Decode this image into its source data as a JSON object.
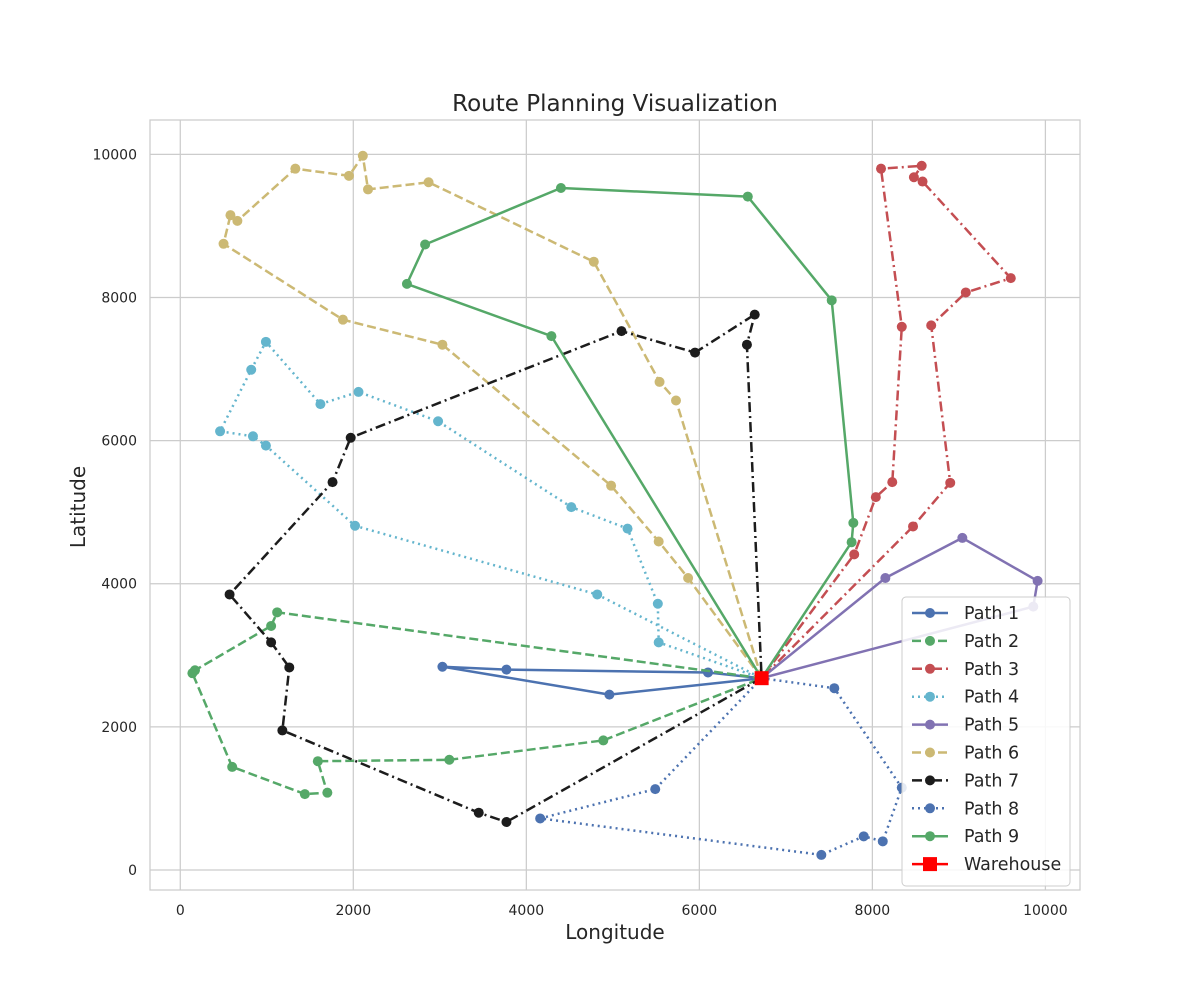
{
  "chart_data": {
    "type": "line",
    "title": "Route Planning Visualization",
    "xlabel": "Longitude",
    "ylabel": "Latitude",
    "xlim": [
      -350,
      10400
    ],
    "ylim": [
      -280,
      10480
    ],
    "xticks": [
      0,
      2000,
      4000,
      6000,
      8000,
      10000
    ],
    "yticks": [
      0,
      2000,
      4000,
      6000,
      8000,
      10000
    ],
    "grid": true,
    "legend_position": "lower-right",
    "warehouse": {
      "name": "Warehouse",
      "x": 6720,
      "y": 2680,
      "color": "#ff0000",
      "marker": "square"
    },
    "series": [
      {
        "name": "Path 1",
        "color": "#4c72b0",
        "dash": "solid",
        "points": [
          [
            6720,
            2680
          ],
          [
            6100,
            2760
          ],
          [
            3770,
            2800
          ],
          [
            3030,
            2840
          ],
          [
            4960,
            2450
          ],
          [
            6720,
            2680
          ]
        ]
      },
      {
        "name": "Path 2",
        "color": "#55a868",
        "dash": "dashed",
        "points": [
          [
            6720,
            2680
          ],
          [
            1120,
            3600
          ],
          [
            1050,
            3410
          ],
          [
            170,
            2790
          ],
          [
            140,
            2750
          ],
          [
            600,
            1440
          ],
          [
            1440,
            1060
          ],
          [
            1700,
            1080
          ],
          [
            1590,
            1520
          ],
          [
            3110,
            1540
          ],
          [
            4890,
            1810
          ],
          [
            6720,
            2680
          ]
        ]
      },
      {
        "name": "Path 3",
        "color": "#c44e52",
        "dash": "dashdot",
        "points": [
          [
            6720,
            2680
          ],
          [
            7790,
            4410
          ],
          [
            8040,
            5210
          ],
          [
            8230,
            5420
          ],
          [
            8340,
            7590
          ],
          [
            8100,
            9800
          ],
          [
            8570,
            9840
          ],
          [
            8480,
            9680
          ],
          [
            8580,
            9620
          ],
          [
            9600,
            8270
          ],
          [
            9080,
            8070
          ],
          [
            8680,
            7610
          ],
          [
            8900,
            5410
          ],
          [
            8470,
            4800
          ],
          [
            6720,
            2680
          ]
        ]
      },
      {
        "name": "Path 4",
        "color": "#64b5cd",
        "dash": "dotted",
        "points": [
          [
            6720,
            2680
          ],
          [
            5530,
            3180
          ],
          [
            5520,
            3720
          ],
          [
            5170,
            4770
          ],
          [
            4520,
            5070
          ],
          [
            2980,
            6270
          ],
          [
            2060,
            6680
          ],
          [
            1620,
            6510
          ],
          [
            990,
            7380
          ],
          [
            820,
            6990
          ],
          [
            460,
            6130
          ],
          [
            840,
            6060
          ],
          [
            990,
            5930
          ],
          [
            2020,
            4810
          ],
          [
            4820,
            3850
          ],
          [
            6720,
            2680
          ]
        ]
      },
      {
        "name": "Path 5",
        "color": "#8172b2",
        "dash": "solid",
        "points": [
          [
            6720,
            2680
          ],
          [
            9860,
            3680
          ],
          [
            9910,
            4040
          ],
          [
            9040,
            4640
          ],
          [
            8150,
            4080
          ],
          [
            6720,
            2680
          ]
        ]
      },
      {
        "name": "Path 6",
        "color": "#ccb974",
        "dash": "dashed",
        "points": [
          [
            6720,
            2680
          ],
          [
            5870,
            4080
          ],
          [
            5530,
            4590
          ],
          [
            4980,
            5370
          ],
          [
            3030,
            7340
          ],
          [
            1880,
            7690
          ],
          [
            500,
            8750
          ],
          [
            580,
            9150
          ],
          [
            660,
            9070
          ],
          [
            1330,
            9800
          ],
          [
            1950,
            9700
          ],
          [
            2110,
            9980
          ],
          [
            2170,
            9510
          ],
          [
            2870,
            9610
          ],
          [
            4780,
            8500
          ],
          [
            5540,
            6820
          ],
          [
            5730,
            6560
          ],
          [
            6720,
            2680
          ]
        ]
      },
      {
        "name": "Path 7",
        "color": "#1c1c1c",
        "dash": "dashdot",
        "points": [
          [
            6720,
            2680
          ],
          [
            3770,
            670
          ],
          [
            3450,
            800
          ],
          [
            1180,
            1950
          ],
          [
            1260,
            2830
          ],
          [
            1050,
            3180
          ],
          [
            570,
            3850
          ],
          [
            1760,
            5420
          ],
          [
            1970,
            6040
          ],
          [
            5100,
            7530
          ],
          [
            5950,
            7230
          ],
          [
            6640,
            7760
          ],
          [
            6550,
            7340
          ],
          [
            6720,
            2680
          ]
        ]
      },
      {
        "name": "Path 8",
        "color": "#4c72b0",
        "dash": "dotted",
        "points": [
          [
            6720,
            2680
          ],
          [
            7560,
            2540
          ],
          [
            8340,
            1150
          ],
          [
            8120,
            400
          ],
          [
            7900,
            470
          ],
          [
            7410,
            210
          ],
          [
            4160,
            720
          ],
          [
            5490,
            1130
          ],
          [
            6720,
            2680
          ]
        ]
      },
      {
        "name": "Path 9",
        "color": "#55a868",
        "dash": "solid",
        "points": [
          [
            6720,
            2680
          ],
          [
            7760,
            4580
          ],
          [
            7780,
            4850
          ],
          [
            7530,
            7960
          ],
          [
            6560,
            9410
          ],
          [
            4400,
            9530
          ],
          [
            2830,
            8740
          ],
          [
            2620,
            8190
          ],
          [
            4290,
            7460
          ],
          [
            6720,
            2680
          ]
        ]
      }
    ]
  }
}
